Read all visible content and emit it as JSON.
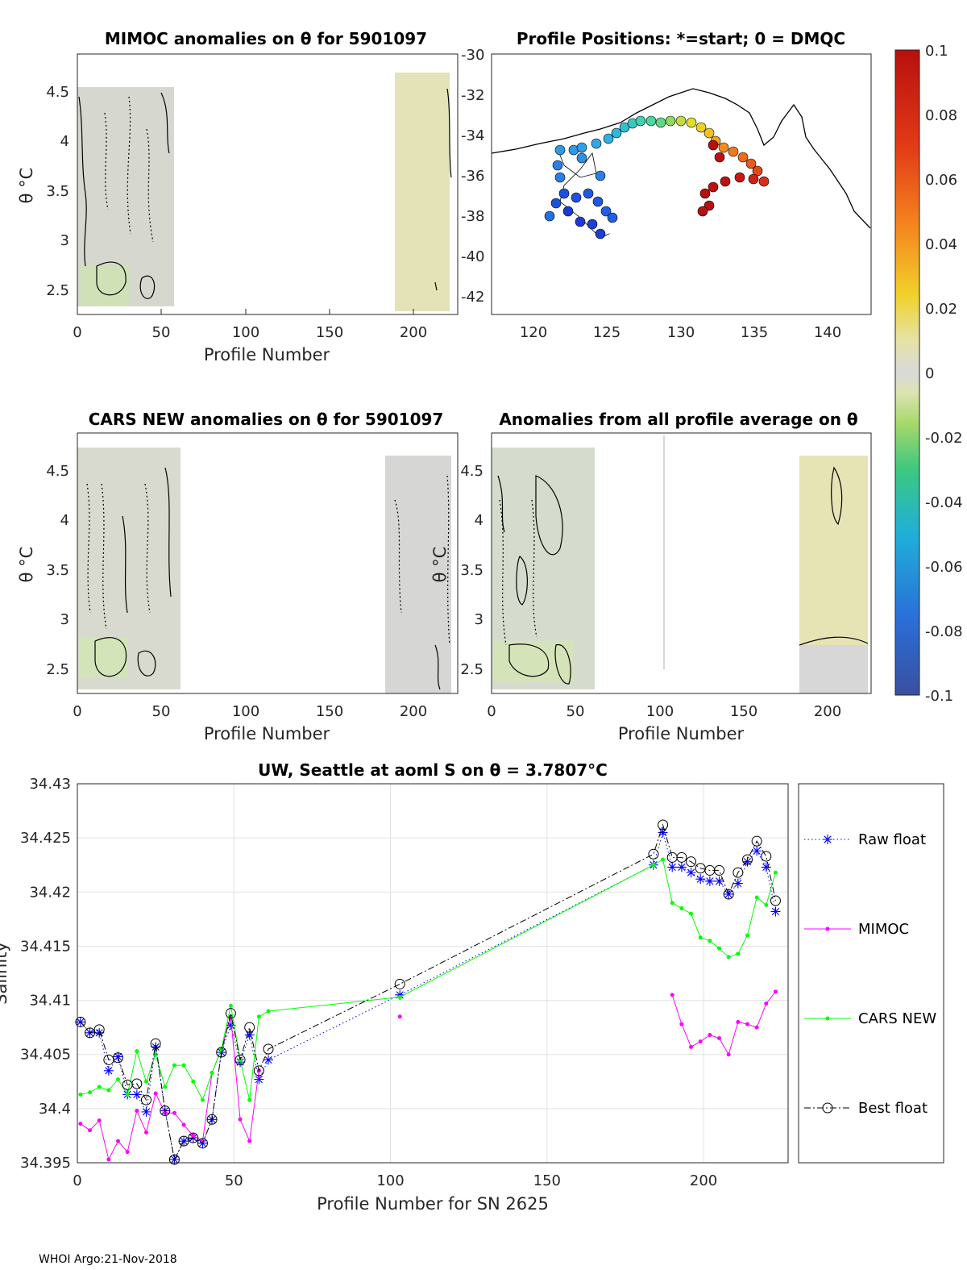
{
  "footer": "WHOI Argo:21-Nov-2018",
  "panels": {
    "mimoc": {
      "title": "MIMOC anomalies on θ  for 5901097",
      "ylabel": "θ °C",
      "xlabel": "Profile Number",
      "xticks": [
        "0",
        "50",
        "100",
        "150",
        "200"
      ],
      "yticks": [
        "2.5",
        "3",
        "3.5",
        "4",
        "4.5"
      ]
    },
    "positions": {
      "title": "Profile Positions: *=start; 0 = DMQC",
      "xticks": [
        "120",
        "125",
        "130",
        "135",
        "140"
      ],
      "yticks": [
        "-30",
        "-32",
        "-34",
        "-36",
        "-38",
        "-40",
        "-42"
      ]
    },
    "cars": {
      "title": "CARS NEW anomalies on θ for 5901097",
      "ylabel": "θ °C",
      "xlabel": "Profile Number",
      "xticks": [
        "0",
        "50",
        "100",
        "150",
        "200"
      ],
      "yticks": [
        "2.5",
        "3",
        "3.5",
        "4",
        "4.5"
      ]
    },
    "allavg": {
      "title": "Anomalies from all profile average on θ",
      "ylabel": "θ °C",
      "xlabel": "Profile Number",
      "xticks": [
        "0",
        "50",
        "100",
        "150",
        "200"
      ],
      "yticks": [
        "2.5",
        "3",
        "3.5",
        "4",
        "4.5"
      ]
    },
    "colorbar": {
      "ticks": [
        "0.1",
        "0.08",
        "0.06",
        "0.04",
        "0.02",
        "0",
        "-0.02",
        "-0.04",
        "-0.06",
        "-0.08",
        "-0.1"
      ]
    }
  },
  "chart_data": {
    "type": "line",
    "title": "UW, Seattle at aoml S on θ = 3.7807°C",
    "xlabel": "Profile Number for SN 2625",
    "ylabel": "Salinity",
    "xlim": [
      0,
      227
    ],
    "ylim": [
      34.395,
      34.43
    ],
    "xticks": [
      "0",
      "50",
      "100",
      "150",
      "200"
    ],
    "yticks": [
      "34.395",
      "34.4",
      "34.405",
      "34.41",
      "34.415",
      "34.42",
      "34.425",
      "34.43"
    ],
    "legend_position": "right",
    "series": [
      {
        "name": "Raw float",
        "color": "#0000ff",
        "marker": "star",
        "style": "dotted",
        "x": [
          1,
          4,
          7,
          10,
          13,
          16,
          19,
          22,
          25,
          28,
          31,
          34,
          37,
          40,
          43,
          46,
          49,
          52,
          55,
          58,
          61,
          103,
          184,
          187,
          190,
          193,
          196,
          199,
          202,
          205,
          208,
          211,
          214,
          217,
          220,
          223
        ],
        "y": [
          34.408,
          34.407,
          34.407,
          34.4035,
          34.4048,
          34.4013,
          34.4013,
          34.3997,
          34.4057,
          34.3998,
          34.3953,
          34.397,
          34.3973,
          34.3968,
          34.399,
          34.4052,
          34.4077,
          34.4043,
          34.4068,
          34.4027,
          34.4045,
          34.4105,
          34.4225,
          34.4255,
          34.4223,
          34.4223,
          34.4218,
          34.4212,
          34.421,
          34.421,
          34.4198,
          34.4208,
          34.4228,
          34.4238,
          34.4223,
          34.4182
        ]
      },
      {
        "name": "MIMOC",
        "color": "#ff00ff",
        "marker": "dot",
        "style": "solid",
        "x": [
          1,
          4,
          7,
          10,
          13,
          16,
          19,
          22,
          25,
          28,
          31,
          34,
          37,
          40,
          43,
          46,
          49,
          52,
          55,
          58,
          103,
          190,
          193,
          196,
          199,
          202,
          205,
          208,
          211,
          214,
          217,
          220,
          223
        ],
        "y": [
          34.3986,
          34.398,
          34.3989,
          34.3953,
          34.397,
          34.396,
          34.3998,
          34.3978,
          34.4014,
          34.3996,
          34.3996,
          34.3985,
          34.3975,
          34.397,
          34.4033,
          34.4055,
          34.4085,
          34.399,
          34.397,
          34.4035,
          34.4085,
          34.4105,
          34.4078,
          34.4057,
          34.4062,
          34.4068,
          34.4065,
          34.405,
          34.408,
          34.4078,
          34.4075,
          34.4097,
          34.4108
        ]
      },
      {
        "name": "CARS NEW",
        "color": "#00ff00",
        "marker": "dot",
        "style": "solid",
        "x": [
          1,
          4,
          7,
          10,
          13,
          16,
          19,
          22,
          25,
          28,
          31,
          34,
          37,
          40,
          43,
          46,
          49,
          52,
          55,
          58,
          61,
          103,
          184,
          187,
          190,
          193,
          196,
          199,
          202,
          205,
          208,
          211,
          214,
          217,
          220,
          223
        ],
        "y": [
          34.4013,
          34.4015,
          34.402,
          34.4017,
          34.4027,
          34.4013,
          34.4053,
          34.4025,
          34.405,
          34.402,
          34.404,
          34.404,
          34.4025,
          34.4008,
          34.4033,
          34.4055,
          34.4095,
          34.4045,
          34.4008,
          34.4085,
          34.409,
          34.4103,
          34.4225,
          34.423,
          34.419,
          34.4185,
          34.418,
          34.4158,
          34.4155,
          34.4148,
          34.414,
          34.4143,
          34.416,
          34.4195,
          34.4188,
          34.4218
        ]
      },
      {
        "name": "Best float",
        "color": "#000000",
        "marker": "circle",
        "style": "dashdot",
        "x": [
          1,
          4,
          7,
          10,
          13,
          16,
          19,
          22,
          25,
          28,
          31,
          34,
          37,
          40,
          43,
          46,
          49,
          52,
          55,
          58,
          61,
          103,
          184,
          187,
          190,
          193,
          196,
          199,
          202,
          205,
          208,
          211,
          214,
          217,
          220,
          223
        ],
        "y": [
          34.408,
          34.407,
          34.4073,
          34.4045,
          34.4047,
          34.4022,
          34.4023,
          34.4008,
          34.406,
          34.3998,
          34.3953,
          34.397,
          34.3973,
          34.3968,
          34.399,
          34.4052,
          34.4088,
          34.4045,
          34.4075,
          34.4035,
          34.4055,
          34.4115,
          34.4235,
          34.4262,
          34.4232,
          34.4232,
          34.4228,
          34.4222,
          34.422,
          34.422,
          34.4198,
          34.4218,
          34.423,
          34.4247,
          34.4233,
          34.4192
        ]
      }
    ]
  }
}
